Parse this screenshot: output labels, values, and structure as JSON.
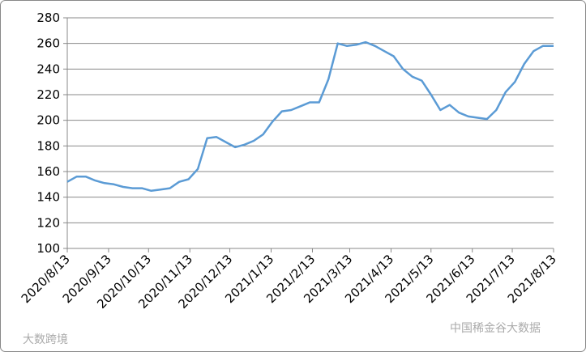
{
  "chart_data": {
    "type": "line",
    "x": [
      "2020/8/13",
      "2020/8/20",
      "2020/8/27",
      "2020/9/3",
      "2020/9/10",
      "2020/9/17",
      "2020/9/24",
      "2020/10/1",
      "2020/10/8",
      "2020/10/15",
      "2020/10/22",
      "2020/10/29",
      "2020/11/5",
      "2020/11/12",
      "2020/11/19",
      "2020/11/26",
      "2020/12/3",
      "2020/12/10",
      "2020/12/17",
      "2020/12/24",
      "2020/12/31",
      "2021/1/7",
      "2021/1/14",
      "2021/1/21",
      "2021/1/28",
      "2021/2/4",
      "2021/2/11",
      "2021/2/18",
      "2021/2/25",
      "2021/3/4",
      "2021/3/11",
      "2021/3/18",
      "2021/3/25",
      "2021/4/1",
      "2021/4/8",
      "2021/4/15",
      "2021/4/22",
      "2021/4/29",
      "2021/5/6",
      "2021/5/13",
      "2021/5/20",
      "2021/5/27",
      "2021/6/3",
      "2021/6/10",
      "2021/6/17",
      "2021/6/24",
      "2021/7/1",
      "2021/7/8",
      "2021/7/15",
      "2021/7/22",
      "2021/7/29",
      "2021/8/5",
      "2021/8/13"
    ],
    "series": [
      {
        "color": "#5b9bd5",
        "values": [
          152,
          156,
          156,
          153,
          151,
          150,
          148,
          147,
          147,
          145,
          146,
          147,
          152,
          154,
          162,
          186,
          187,
          183,
          179,
          181,
          184,
          189,
          199,
          207,
          208,
          211,
          214,
          214,
          232,
          260,
          258,
          259,
          261,
          258,
          254,
          250,
          240,
          234,
          231,
          220,
          208,
          212,
          206,
          203,
          202,
          201,
          208,
          222,
          230,
          244,
          254,
          258,
          258
        ]
      }
    ],
    "xlim": [
      "2020/8/13",
      "2021/8/13"
    ],
    "xticks": [
      "2020/8/13",
      "2020/9/13",
      "2020/10/13",
      "2020/11/13",
      "2020/12/13",
      "2021/1/13",
      "2021/2/13",
      "2021/3/13",
      "2021/4/13",
      "2021/5/13",
      "2021/6/13",
      "2021/7/13",
      "2021/8/13"
    ],
    "ylim": [
      100,
      280
    ],
    "yticks": [
      100,
      120,
      140,
      160,
      180,
      200,
      220,
      240,
      260,
      280
    ],
    "grid": true,
    "watermarks": [
      "大数跨境",
      "中国稀金谷大数据"
    ]
  }
}
